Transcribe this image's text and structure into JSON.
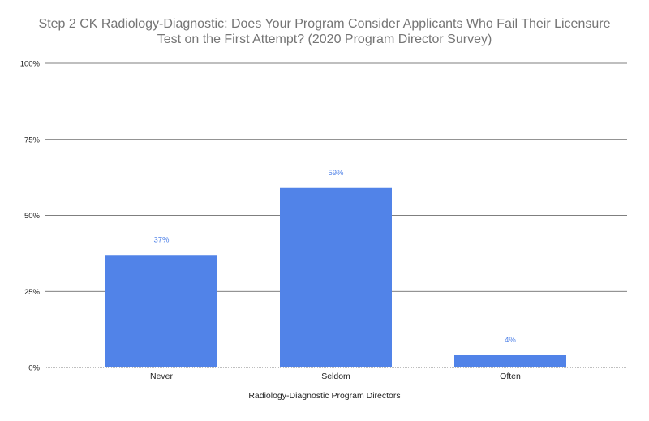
{
  "chart_data": {
    "type": "bar",
    "title_lines": [
      "Step 2 CK Radiology-Diagnostic: Does Your Program Consider Applicants Who Fail Their Licensure",
      "Test on the First Attempt? (2020 Program Director Survey)"
    ],
    "xlabel": "Radiology-Diagnostic Program Directors",
    "ylabel": "",
    "categories": [
      "Never",
      "Seldom",
      "Often"
    ],
    "values": [
      37,
      59,
      4
    ],
    "data_labels": [
      "37%",
      "59%",
      "4%"
    ],
    "ylim": [
      0,
      100
    ],
    "yticks": [
      0,
      25,
      50,
      75,
      100
    ],
    "ytick_labels": [
      "0%",
      "25%",
      "50%",
      "75%",
      "100%"
    ],
    "grid": true,
    "bar_color": "#5183e8",
    "label_color": "#5183e8"
  }
}
